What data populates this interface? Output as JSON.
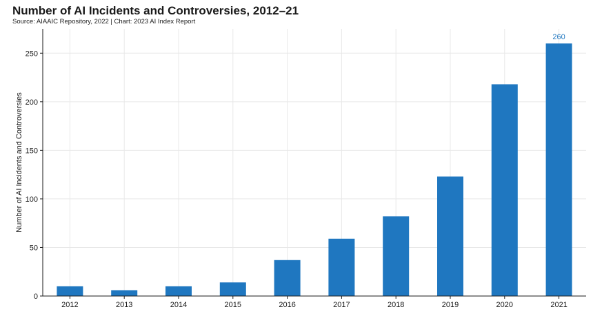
{
  "title": "Number of AI Incidents and Controversies, 2012–21",
  "subtitle": "Source: AIAAIC Repository, 2022 | Chart: 2023 AI Index Report",
  "colors": {
    "bar": "#1f77c0",
    "grid": "#e8e8e8",
    "label": "#1f77c0"
  },
  "chart_data": {
    "type": "bar",
    "title": "Number of AI Incidents and Controversies, 2012–21",
    "xlabel": "",
    "ylabel": "Number of AI Incidents and Controversies",
    "categories": [
      "2012",
      "2013",
      "2014",
      "2015",
      "2016",
      "2017",
      "2018",
      "2019",
      "2020",
      "2021"
    ],
    "values": [
      10,
      6,
      10,
      14,
      37,
      59,
      82,
      123,
      218,
      260
    ],
    "ylim": [
      0,
      275
    ],
    "yticks": [
      0,
      50,
      100,
      150,
      200,
      250
    ],
    "data_labels": {
      "2021": "260"
    },
    "grid": true
  }
}
